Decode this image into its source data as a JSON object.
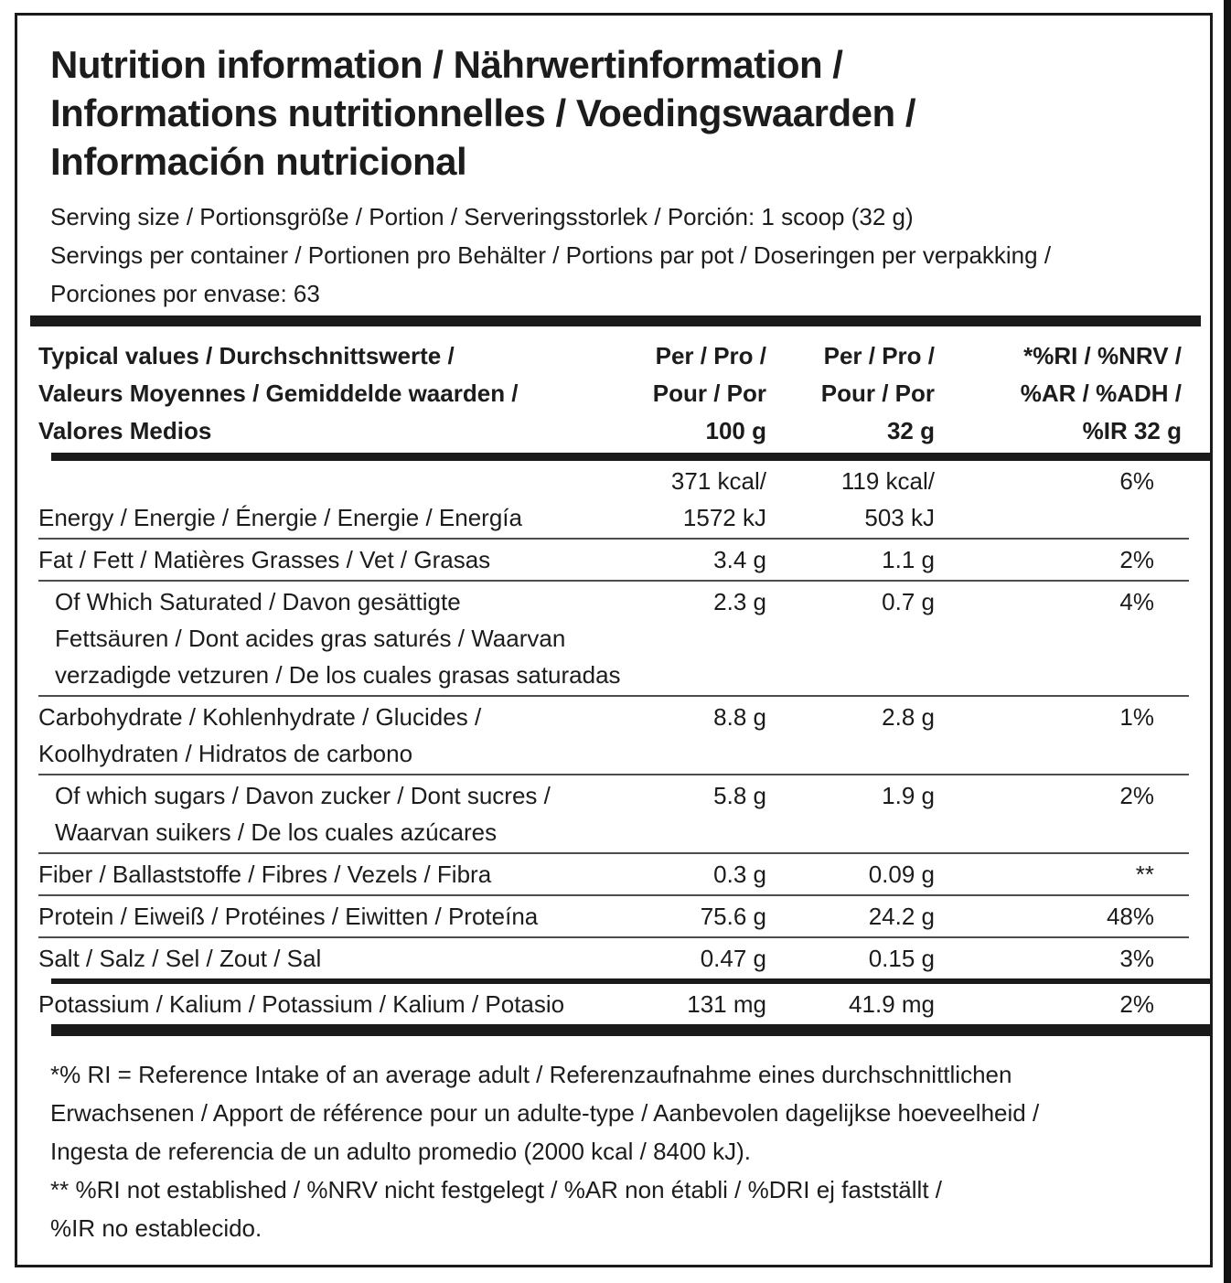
{
  "title": "Nutrition information / Nährwertinformation /\nInformations nutritionnelles / Voedingswaarden /\nInformación nutricional",
  "serving": {
    "size": "Serving size / Portionsgröße / Portion / Serveringsstorlek / Porción: 1 scoop (32 g)",
    "per_container": "Servings per container / Portionen pro Behälter / Portions par pot / Doseringen per verpakking /\nPorciones por envase: 63"
  },
  "table": {
    "header": {
      "typical_values": "Typical values / Durchschnittswerte /\nValeurs Moyennes / Gemiddelde waarden /\nValores Medios",
      "per_100": "Per / Pro /\nPour / Por\n100 g",
      "per_32": "Per / Pro /\nPour / Por\n32 g",
      "ri": "*%RI / %NRV /\n%AR / %ADH /\n%IR 32 g"
    },
    "rows": [
      {
        "label": "Energy / Energie / Énergie / Energie / Energía",
        "per100": "371 kcal/\n1572 kJ",
        "per32": "119 kcal/\n503 kJ",
        "ri": "6%"
      },
      {
        "label": "Fat / Fett / Matières Grasses / Vet / Grasas",
        "per100": "3.4 g",
        "per32": "1.1 g",
        "ri": "2%"
      },
      {
        "label": "Of Which Saturated / Davon gesättigte\nFettsäuren / Dont acides gras saturés / Waarvan\nverzadigde vetzuren / De los cuales grasas saturadas",
        "per100": "2.3 g",
        "per32": "0.7 g",
        "ri": "4%"
      },
      {
        "label": "Carbohydrate / Kohlenhydrate / Glucides /\nKoolhydraten / Hidratos de carbono",
        "per100": "8.8 g",
        "per32": "2.8 g",
        "ri": "1%"
      },
      {
        "label": "Of which sugars / Davon zucker / Dont sucres /\nWaarvan suikers / De los cuales azúcares",
        "per100": "5.8 g",
        "per32": "1.9 g",
        "ri": "2%"
      },
      {
        "label": "Fiber / Ballaststoffe / Fibres / Vezels / Fibra",
        "per100": "0.3 g",
        "per32": "0.09 g",
        "ri": "**"
      },
      {
        "label": "Protein / Eiweiß / Protéines / Eiwitten / Proteína",
        "per100": "75.6 g",
        "per32": "24.2 g",
        "ri": "48%"
      },
      {
        "label": "Salt / Salz / Sel / Zout / Sal",
        "per100": "0.47 g",
        "per32": "0.15 g",
        "ri": "3%"
      },
      {
        "label": "Potassium / Kalium / Potassium / Kalium / Potasio",
        "per100": "131 mg",
        "per32": "41.9 mg",
        "ri": "2%"
      }
    ]
  },
  "footnotes": {
    "reference_intake": "*% RI = Reference Intake of an average adult / Referenzaufnahme eines durchschnittlichen\nErwachsenen / Apport de référence pour un adulte-type / Aanbevolen dagelijkse hoeveelheid  /\nIngesta de referencia de un adulto promedio (2000 kcal / 8400 kJ).",
    "not_established": "** %RI not established / %NRV nicht festgelegt / %AR non établi / %DRI ej fastställt /\n%IR no establecido."
  },
  "colors": {
    "text": "#1c1c1c",
    "bar": "#1a1a1a",
    "rule": "#4d4d4d",
    "background": "#ffffff"
  }
}
